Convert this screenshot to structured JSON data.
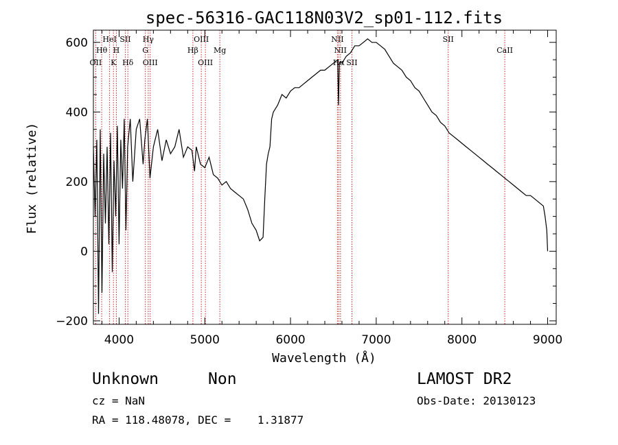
{
  "chart_data": {
    "type": "line",
    "title": "spec-56316-GAC118N03V2_sp01-112.fits",
    "xlabel": "Wavelength (Å)",
    "ylabel": "Flux (relative)",
    "xlim": [
      3700,
      9100
    ],
    "ylim": [
      -210,
      635
    ],
    "xticks": [
      4000,
      5000,
      6000,
      7000,
      8000,
      9000
    ],
    "xtick_labels": [
      "4000",
      "5000",
      "6000",
      "7000",
      "8000",
      "9000"
    ],
    "yticks": [
      -200,
      0,
      200,
      400,
      600
    ],
    "ytick_labels": [
      "−200",
      "0",
      "200",
      "400",
      "600"
    ],
    "series": [
      {
        "x": [
          3700,
          3720,
          3740,
          3760,
          3780,
          3800,
          3820,
          3840,
          3860,
          3880,
          3900,
          3920,
          3940,
          3960,
          3980,
          4000,
          4020,
          4040,
          4060,
          4080,
          4100,
          4130,
          4160,
          4200,
          4240,
          4280,
          4300,
          4330,
          4360,
          4400,
          4450,
          4500,
          4550,
          4600,
          4650,
          4700,
          4750,
          4800,
          4850,
          4880,
          4900,
          4950,
          5000,
          5050,
          5100,
          5150,
          5200,
          5250,
          5300,
          5350,
          5400,
          5450,
          5500,
          5550,
          5600,
          5640,
          5680,
          5700,
          5720,
          5740,
          5760,
          5780,
          5800,
          5850,
          5900,
          5950,
          6000,
          6050,
          6100,
          6150,
          6200,
          6250,
          6300,
          6350,
          6400,
          6450,
          6500,
          6550,
          6560,
          6570,
          6580,
          6600,
          6650,
          6700,
          6750,
          6800,
          6850,
          6900,
          6950,
          7000,
          7050,
          7100,
          7150,
          7200,
          7250,
          7300,
          7350,
          7400,
          7450,
          7500,
          7550,
          7600,
          7650,
          7700,
          7750,
          7800,
          7850,
          7900,
          7950,
          8000,
          8050,
          8100,
          8150,
          8200,
          8250,
          8300,
          8350,
          8400,
          8450,
          8500,
          8550,
          8600,
          8650,
          8700,
          8750,
          8800,
          8850,
          8900,
          8950,
          8970,
          8990,
          9000
        ],
        "y": [
          300,
          100,
          320,
          -180,
          350,
          -120,
          280,
          80,
          300,
          20,
          340,
          -60,
          260,
          100,
          360,
          20,
          320,
          180,
          380,
          60,
          300,
          380,
          200,
          350,
          380,
          250,
          320,
          380,
          210,
          300,
          350,
          260,
          320,
          280,
          300,
          350,
          270,
          300,
          290,
          230,
          300,
          250,
          240,
          270,
          220,
          210,
          190,
          200,
          180,
          170,
          160,
          150,
          120,
          80,
          60,
          30,
          40,
          150,
          250,
          280,
          300,
          380,
          400,
          420,
          450,
          440,
          460,
          470,
          470,
          480,
          490,
          500,
          510,
          520,
          520,
          530,
          540,
          550,
          420,
          540,
          545,
          540,
          560,
          570,
          590,
          590,
          600,
          610,
          600,
          600,
          590,
          580,
          560,
          540,
          530,
          520,
          500,
          490,
          470,
          460,
          440,
          420,
          400,
          390,
          370,
          360,
          340,
          330,
          320,
          310,
          300,
          290,
          280,
          270,
          260,
          250,
          240,
          230,
          220,
          210,
          200,
          190,
          180,
          170,
          160,
          160,
          150,
          140,
          130,
          100,
          60,
          0
        ]
      }
    ],
    "line_color": "#000000",
    "marker_color": "#cc2222",
    "lines": [
      {
        "name": "OII",
        "x": 3727,
        "row": 3
      },
      {
        "name": "Hθ",
        "x": 3797,
        "row": 2
      },
      {
        "name": "HeI",
        "x": 3889,
        "row": 1
      },
      {
        "name": "K",
        "x": 3934,
        "row": 3
      },
      {
        "name": "H",
        "x": 3968,
        "row": 2
      },
      {
        "name": "SII",
        "x": 4072,
        "row": 1
      },
      {
        "name": "Hδ",
        "x": 4102,
        "row": 3
      },
      {
        "name": "Hγ",
        "x": 4340,
        "row": 1
      },
      {
        "name": "G",
        "x": 4306,
        "row": 2
      },
      {
        "name": "OIII",
        "x": 4363,
        "row": 3
      },
      {
        "name": "Hβ",
        "x": 4861,
        "row": 2
      },
      {
        "name": "OIII",
        "x": 4959,
        "row": 1
      },
      {
        "name": "OIII",
        "x": 5007,
        "row": 3
      },
      {
        "name": "Mg",
        "x": 5175,
        "row": 2
      },
      {
        "name": "NII",
        "x": 6548,
        "row": 1
      },
      {
        "name": "NII",
        "x": 6583,
        "row": 2
      },
      {
        "name": "Hα",
        "x": 6563,
        "row": 3
      },
      {
        "name": "SII",
        "x": 6716,
        "row": 3
      },
      {
        "name": "SII",
        "x": 7840,
        "row": 1
      },
      {
        "name": "CaII",
        "x": 8500,
        "row": 2
      }
    ]
  },
  "info": {
    "object_class": "Unknown",
    "subclass": "Non",
    "cz": "cz = NaN",
    "coords": "RA = 118.48078, DEC =    1.31877",
    "survey": "LAMOST DR2",
    "obs_date": "Obs-Date: 20130123"
  }
}
